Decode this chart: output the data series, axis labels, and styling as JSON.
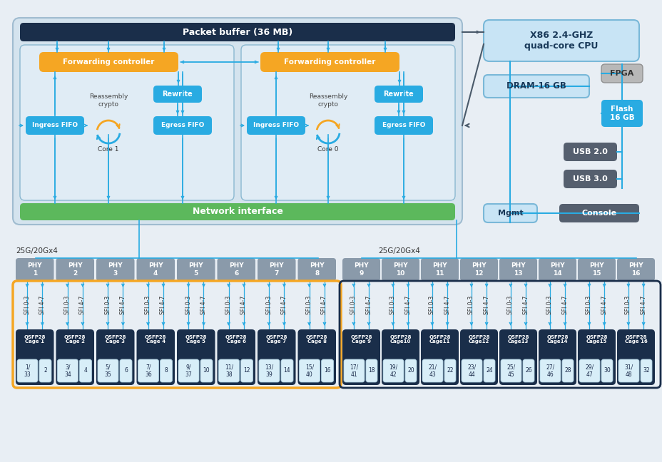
{
  "bg_color": "#e8eef4",
  "packet_buffer_label": "Packet buffer (36 MB)",
  "packet_buffer_color": "#1a2e4a",
  "outer_box_bg": "#d4e3ee",
  "outer_box_ec": "#a0bcd0",
  "inner_box_bg": "#e0ecf5",
  "inner_box_ec": "#8ab8d0",
  "fc_color": "#f5a623",
  "fc_text": "Forwarding controller",
  "rewrite_color": "#29abe2",
  "rewrite_text": "Rewrite",
  "fifo_color": "#29abe2",
  "ingress_text": "Ingress FIFO",
  "egress_text": "Egress FIFO",
  "reassembly_text": "Reassembly\ncrypto",
  "core1_text": "Core 1",
  "core0_text": "Core 0",
  "ni_color": "#5cb85c",
  "ni_text": "Network interface",
  "cpu_bg": "#c8e4f5",
  "cpu_ec": "#7ab8d8",
  "cpu_text": "X86 2.4-GHZ\nquad-core CPU",
  "dram_text": "DRAM-16 GB",
  "fpga_color": "#b8b8b8",
  "fpga_ec": "#909090",
  "fpga_text": "FPGA",
  "flash_color": "#29abe2",
  "flash_text": "Flash\n16 GB",
  "usb_color": "#555f6e",
  "usb20_text": "USB 2.0",
  "usb30_text": "USB 3.0",
  "mgmt_bg": "#c8e4f5",
  "mgmt_ec": "#7ab8d8",
  "mgmt_text": "Mgmt",
  "console_color": "#555f6e",
  "console_text": "Console",
  "phy_color": "#8a9aaa",
  "phy_labels": [
    "PHY\n1",
    "PHY\n2",
    "PHY\n3",
    "PHY\n4",
    "PHY\n5",
    "PHY\n6",
    "PHY\n7",
    "PHY\n8",
    "PHY\n9",
    "PHY\n10",
    "PHY\n11",
    "PHY\n12",
    "PHY\n13",
    "PHY\n14",
    "PHY\n15",
    "PHY\n16"
  ],
  "cage_color": "#1a2e4a",
  "cage_labels": [
    "QSFP28\nCage 1",
    "QSFP28\nCage 2",
    "QSFP28\nCage 3",
    "QSFP28\nCage 4",
    "QSFP28\nCage 5",
    "QSFP28\nCage 6",
    "QSFP28\nCage 7",
    "QSFP28\nCage 8",
    "QSFP28\nCage 9",
    "QSFP28\nCage10",
    "QSFP28\nCage11",
    "QSFP28\nCage12",
    "QSFP28\nCage13",
    "QSFP28\nCage14",
    "QSFP28\nCage15",
    "QSFP28\nCage 16"
  ],
  "port_left": [
    "1/\n33",
    "3/\n34",
    "5/\n35",
    "7/\n36",
    "9/\n37",
    "11/\n38",
    "13/\n39",
    "15/\n40",
    "17/\n41",
    "19/\n42",
    "21/\n43",
    "23/\n44",
    "25/\n45",
    "27/\n46",
    "29/\n47",
    "31/\n48"
  ],
  "port_right": [
    "2",
    "4",
    "6",
    "8",
    "10",
    "12",
    "14",
    "16",
    "18",
    "20",
    "22",
    "24",
    "26",
    "28",
    "30",
    "32"
  ],
  "group1_ec": "#f5a623",
  "group2_ec": "#1a2e4a",
  "speed_label": "25G/20Gx4",
  "ac": "#29abe2",
  "lc": "#4a5a6a"
}
